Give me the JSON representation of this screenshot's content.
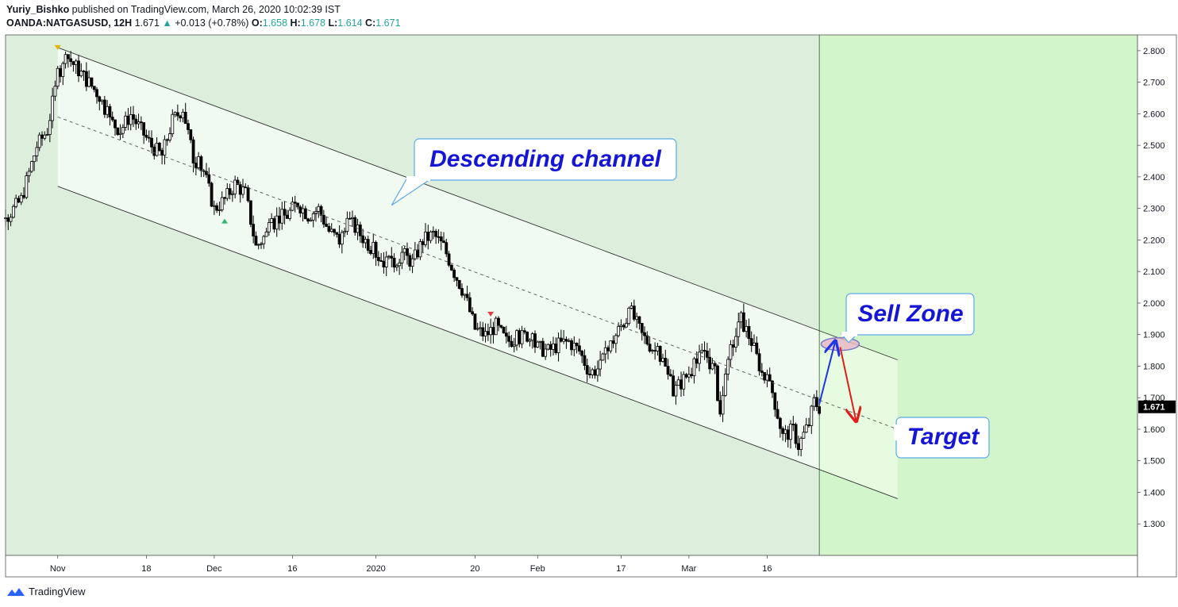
{
  "header": {
    "author": "Yuriy_Bishko",
    "published_text": " published on TradingView.com, March 26, 2020 10:02:39 IST",
    "symbol": "OANDA:NATGASUSD, 12H",
    "last": "1.671",
    "change_arrow": "▲",
    "change": "+0.013 (+0.78%)",
    "o_label": "O:",
    "o_value": "1.658",
    "h_label": "H:",
    "h_value": "1.678",
    "l_label": "L:",
    "l_value": "1.614",
    "c_label": "C:",
    "c_value": "1.671"
  },
  "footer": {
    "brand": "TradingView",
    "logo_icon": "tradingview-logo-icon"
  },
  "colors": {
    "background_green": "#ddefdc",
    "future_zone": "#d3f5cb",
    "channel_fill": "#f1faf0",
    "projection_fill": "#e6fbdf",
    "callout_text": "#1515d6",
    "callout_border": "#5aa9e6",
    "candle_up": "#ffffff",
    "candle_down": "#000000",
    "up_arrow": "#1a36e8",
    "down_arrow": "#e21b1b",
    "price_tag_bg": "#000000"
  },
  "chart_data": {
    "type": "candlestick",
    "symbol": "OANDA:NATGASUSD",
    "timeframe": "12H",
    "y_axis_side": "right",
    "ylim": [
      1.2,
      2.85
    ],
    "y_ticks": [
      "2.800",
      "2.700",
      "2.600",
      "2.500",
      "2.400",
      "2.300",
      "2.200",
      "2.100",
      "2.000",
      "1.900",
      "1.800",
      "1.700",
      "1.600",
      "1.500",
      "1.400",
      "1.300"
    ],
    "x_ticks": [
      {
        "label": "Nov",
        "date": "2019-11-01"
      },
      {
        "label": "18",
        "date": "2019-11-18"
      },
      {
        "label": "Dec",
        "date": "2019-12-01"
      },
      {
        "label": "16",
        "date": "2019-12-16"
      },
      {
        "label": "2020",
        "date": "2020-01-01"
      },
      {
        "label": "20",
        "date": "2020-01-20"
      },
      {
        "label": "Feb",
        "date": "2020-02-01"
      },
      {
        "label": "17",
        "date": "2020-02-17"
      },
      {
        "label": "Mar",
        "date": "2020-03-01"
      },
      {
        "label": "16",
        "date": "2020-03-16"
      }
    ],
    "xlim": [
      "2019-10-22",
      "2020-05-26"
    ],
    "last_price": "1.671",
    "future_zone_start": "2020-03-26",
    "price_path": [
      [
        "2019-10-22",
        2.27
      ],
      [
        "2019-10-25",
        2.33
      ],
      [
        "2019-10-28",
        2.5
      ],
      [
        "2019-10-30",
        2.55
      ],
      [
        "2019-11-01",
        2.72
      ],
      [
        "2019-11-03",
        2.78
      ],
      [
        "2019-11-05",
        2.74
      ],
      [
        "2019-11-07",
        2.7
      ],
      [
        "2019-11-09",
        2.66
      ],
      [
        "2019-11-11",
        2.58
      ],
      [
        "2019-11-13",
        2.55
      ],
      [
        "2019-11-15",
        2.6
      ],
      [
        "2019-11-17",
        2.55
      ],
      [
        "2019-11-19",
        2.5
      ],
      [
        "2019-11-21",
        2.47
      ],
      [
        "2019-11-23",
        2.58
      ],
      [
        "2019-11-25",
        2.62
      ],
      [
        "2019-11-27",
        2.46
      ],
      [
        "2019-11-29",
        2.42
      ],
      [
        "2019-12-01",
        2.3
      ],
      [
        "2019-12-03",
        2.33
      ],
      [
        "2019-12-05",
        2.38
      ],
      [
        "2019-12-07",
        2.35
      ],
      [
        "2019-12-09",
        2.18
      ],
      [
        "2019-12-11",
        2.22
      ],
      [
        "2019-12-13",
        2.27
      ],
      [
        "2019-12-15",
        2.28
      ],
      [
        "2019-12-17",
        2.32
      ],
      [
        "2019-12-19",
        2.28
      ],
      [
        "2019-12-21",
        2.3
      ],
      [
        "2019-12-23",
        2.23
      ],
      [
        "2019-12-25",
        2.2
      ],
      [
        "2019-12-27",
        2.26
      ],
      [
        "2019-12-29",
        2.22
      ],
      [
        "2019-12-31",
        2.18
      ],
      [
        "2020-01-02",
        2.14
      ],
      [
        "2020-01-04",
        2.12
      ],
      [
        "2020-01-06",
        2.16
      ],
      [
        "2020-01-08",
        2.13
      ],
      [
        "2020-01-10",
        2.2
      ],
      [
        "2020-01-12",
        2.22
      ],
      [
        "2020-01-14",
        2.18
      ],
      [
        "2020-01-16",
        2.1
      ],
      [
        "2020-01-18",
        2.03
      ],
      [
        "2020-01-20",
        1.92
      ],
      [
        "2020-01-22",
        1.9
      ],
      [
        "2020-01-24",
        1.93
      ],
      [
        "2020-01-26",
        1.88
      ],
      [
        "2020-01-28",
        1.89
      ],
      [
        "2020-01-30",
        1.9
      ],
      [
        "2020-02-01",
        1.86
      ],
      [
        "2020-02-03",
        1.85
      ],
      [
        "2020-02-05",
        1.87
      ],
      [
        "2020-02-07",
        1.88
      ],
      [
        "2020-02-09",
        1.85
      ],
      [
        "2020-02-11",
        1.78
      ],
      [
        "2020-02-13",
        1.8
      ],
      [
        "2020-02-15",
        1.87
      ],
      [
        "2020-02-17",
        1.93
      ],
      [
        "2020-02-19",
        1.97
      ],
      [
        "2020-02-21",
        1.9
      ],
      [
        "2020-02-23",
        1.86
      ],
      [
        "2020-02-25",
        1.82
      ],
      [
        "2020-02-27",
        1.72
      ],
      [
        "2020-02-29",
        1.76
      ],
      [
        "2020-03-02",
        1.8
      ],
      [
        "2020-03-04",
        1.85
      ],
      [
        "2020-03-06",
        1.78
      ],
      [
        "2020-03-07",
        1.65
      ],
      [
        "2020-03-09",
        1.85
      ],
      [
        "2020-03-11",
        1.95
      ],
      [
        "2020-03-13",
        1.88
      ],
      [
        "2020-03-15",
        1.78
      ],
      [
        "2020-03-17",
        1.72
      ],
      [
        "2020-03-19",
        1.58
      ],
      [
        "2020-03-21",
        1.6
      ],
      [
        "2020-03-22",
        1.55
      ],
      [
        "2020-03-24",
        1.62
      ],
      [
        "2020-03-25",
        1.69
      ],
      [
        "2020-03-26",
        1.671
      ]
    ],
    "channel": {
      "upper": [
        [
          "2019-11-01",
          2.81
        ],
        [
          "2020-04-10",
          1.82
        ]
      ],
      "middle": [
        [
          "2019-11-01",
          2.59
        ],
        [
          "2020-04-10",
          1.6
        ]
      ],
      "lower": [
        [
          "2019-11-01",
          2.37
        ],
        [
          "2020-04-10",
          1.38
        ]
      ]
    },
    "arrows": [
      {
        "from": [
          "2020-03-26",
          1.68
        ],
        "to": [
          "2020-03-29",
          1.875
        ],
        "color": "blue"
      },
      {
        "from": [
          "2020-03-30",
          1.86
        ],
        "to": [
          "2020-04-02",
          1.63
        ],
        "color": "red"
      }
    ],
    "sell_zone_ellipse_center": [
      "2020-03-30",
      1.87
    ],
    "annotations": [
      {
        "text": "Descending channel",
        "pointer_to": [
          "2020-01-04",
          2.31
        ]
      },
      {
        "text": "Sell Zone",
        "pointer_to": [
          "2020-03-31",
          1.875
        ]
      },
      {
        "text": "Target",
        "pointer_to": [
          "2020-04-09",
          1.6
        ]
      }
    ]
  }
}
